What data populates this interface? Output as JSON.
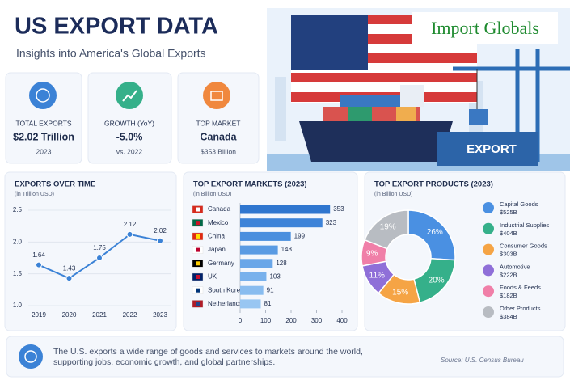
{
  "header": {
    "title": "US EXPORT DATA",
    "subtitle": "Insights into America's Global Exports",
    "logo": "Import Globals"
  },
  "kpis": [
    {
      "label": "TOTAL EXPORTS",
      "value": "$2.02 Trillion",
      "note": "2023"
    },
    {
      "label": "GROWTH (YoY)",
      "value": "-5.0%",
      "note": "vs. 2022"
    },
    {
      "label": "TOP MARKET",
      "value": "Canada",
      "note": "$353 Billion"
    }
  ],
  "illustration": {
    "label": "EXPORT"
  },
  "chart_data": [
    {
      "type": "line",
      "title": "EXPORTS OVER TIME",
      "subtitle": "(in Trillion USD)",
      "categories": [
        "2019",
        "2020",
        "2021",
        "2022",
        "2023"
      ],
      "values": [
        1.64,
        1.43,
        1.75,
        2.12,
        2.02
      ],
      "color": "#3b82d6",
      "ylim": [
        1.0,
        2.5
      ],
      "yticks": [
        {
          "value": 1.0,
          "label": "1.0"
        },
        1.5,
        {
          "value": 2.0,
          "label": "2.0"
        },
        2.5
      ],
      "grid": true
    },
    {
      "type": "hbar",
      "title": "TOP EXPORT MARKETS (2023)",
      "subtitle": "(in Billion USD)",
      "categories": [
        "Canada",
        "Mexico",
        "China",
        "Japan",
        "Germany",
        "UK",
        "South Korea",
        "Netherlands"
      ],
      "values": [
        353,
        323,
        199,
        148,
        128,
        103,
        91,
        81
      ],
      "colors": [
        "#2f76cf",
        "#3d83d8",
        "#4b8fde",
        "#5a9be3",
        "#69a6e8",
        "#78b1ec",
        "#88bcef",
        "#98c6f2"
      ],
      "xlim": [
        0,
        400
      ],
      "xticks": [
        0,
        100,
        200,
        300,
        400
      ]
    },
    {
      "type": "pie",
      "title": "TOP EXPORT PRODUCTS (2023)",
      "subtitle": "(in Billion USD)",
      "categories": [
        "Capital Goods",
        "Industrial Supplies",
        "Consumer Goods",
        "Automotive",
        "Foods & Feeds",
        "Other Products"
      ],
      "values": [
        26,
        20,
        15,
        11,
        9,
        19
      ],
      "value_labels": [
        "26%",
        "20%",
        "15%",
        "11%",
        "9%",
        "19%"
      ],
      "amounts": [
        525,
        404,
        303,
        222,
        182,
        384
      ],
      "amount_labels": [
        "$525B",
        "$404B",
        "$303B",
        "$222B",
        "$182B",
        "$384B"
      ],
      "colors": [
        "#4a90e2",
        "#35b08a",
        "#f5a445",
        "#8f6fd8",
        "#f07fa8",
        "#b8bcc2"
      ],
      "donut": true
    }
  ],
  "footer": {
    "text": [
      "The U.S. exports a wide range of goods and services to markets around the world,",
      "supporting jobs, economic growth, and global partnerships."
    ],
    "source": "Source: U.S. Census Bureau"
  }
}
